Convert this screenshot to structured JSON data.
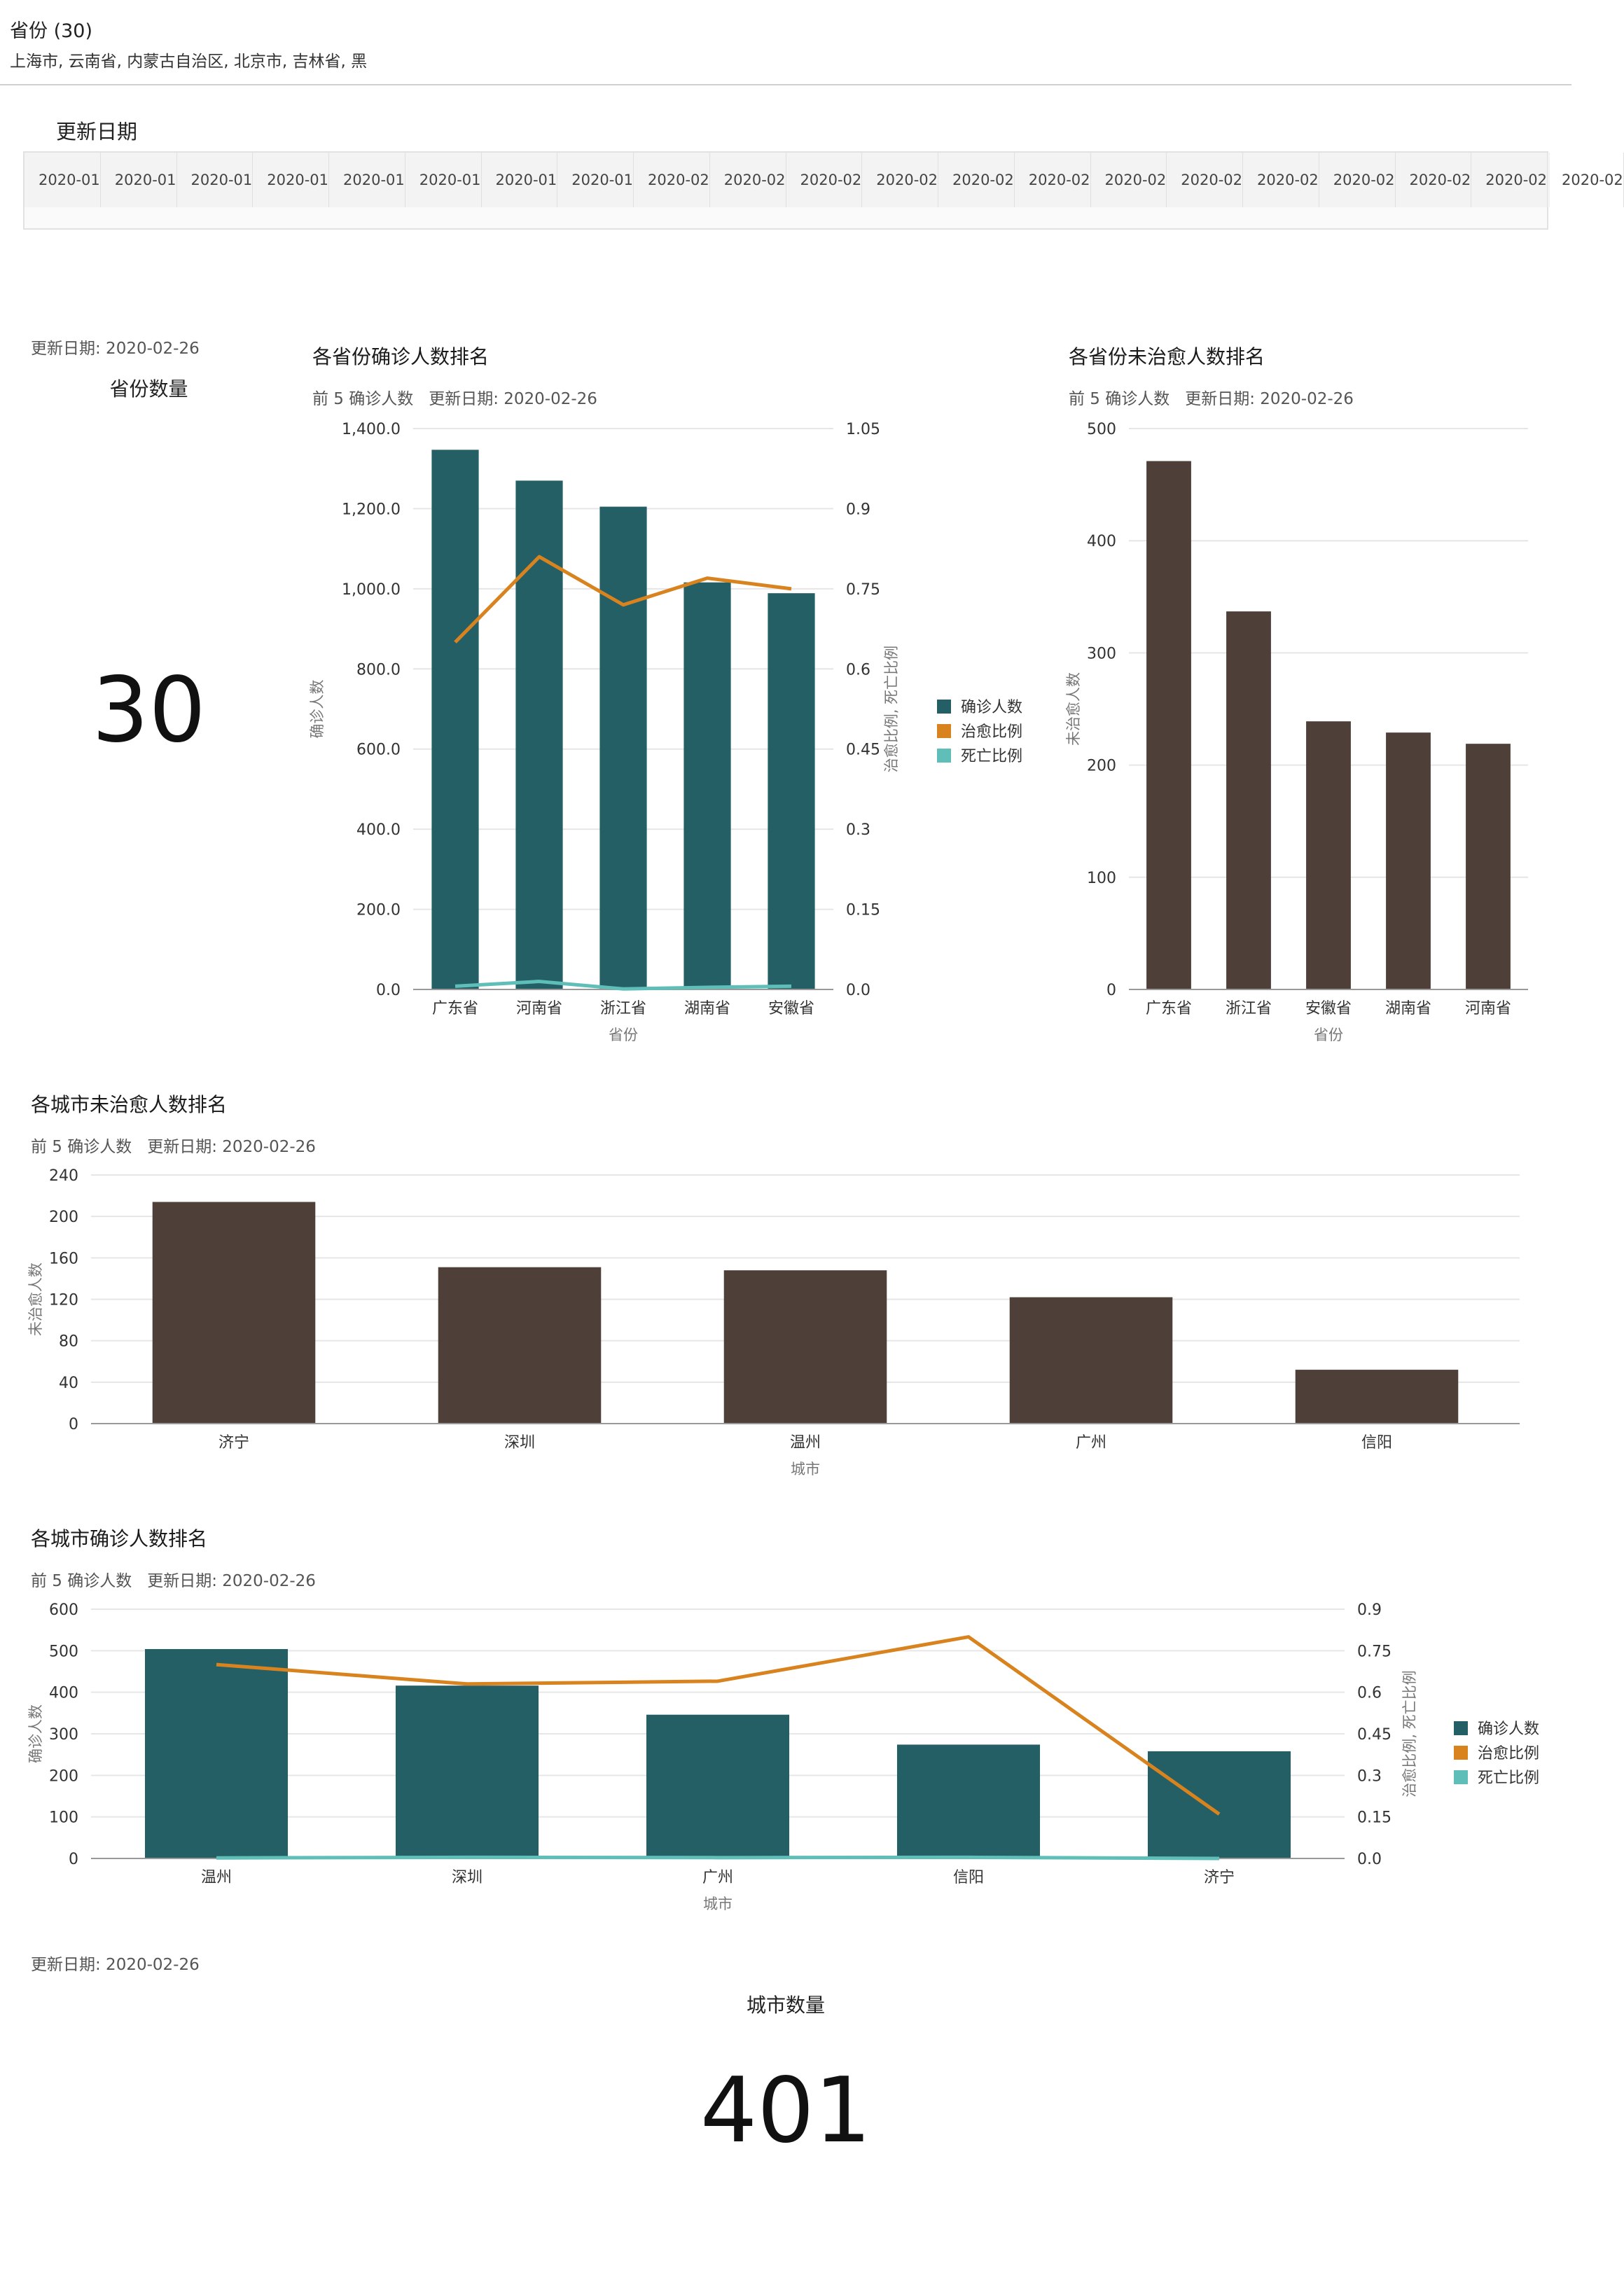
{
  "filter": {
    "title": "省份 (30)",
    "values": "上海市, 云南省, 内蒙古自治区, 北京市, 吉林省, 黑"
  },
  "date_filter": {
    "label": "更新日期",
    "dates": [
      "2020-01",
      "2020-01",
      "2020-01",
      "2020-01",
      "2020-01",
      "2020-01",
      "2020-01",
      "2020-01",
      "2020-02",
      "2020-02",
      "2020-02",
      "2020-02",
      "2020-02",
      "2020-02",
      "2020-02",
      "2020-02",
      "2020-02",
      "2020-02",
      "2020-02",
      "2020-02",
      "2020-02"
    ]
  },
  "kpi_province": {
    "update": "更新日期: 2020-02-26",
    "title": "省份数量",
    "value": "30"
  },
  "kpi_city": {
    "update": "更新日期: 2020-02-26",
    "title": "城市数量",
    "value": "401"
  },
  "colors": {
    "teal": "#245f66",
    "orange": "#d9831f",
    "cyan": "#5fbfb8",
    "brown": "#4e4038",
    "grid": "#e6e6e6",
    "axis": "#999999"
  },
  "chart_data": [
    {
      "id": "prov_confirmed",
      "type": "bar",
      "title": "各省份确诊人数排名",
      "subtitle_top": "前 5 确诊人数",
      "subtitle_date": "更新日期: 2020-02-26",
      "categories": [
        "广东省",
        "河南省",
        "浙江省",
        "湖南省",
        "安徽省"
      ],
      "series": [
        {
          "name": "确诊人数",
          "type": "bar",
          "axis": "left",
          "values": [
            1347,
            1270,
            1205,
            1016,
            989
          ]
        },
        {
          "name": "治愈比例",
          "type": "line",
          "axis": "right",
          "values": [
            0.65,
            0.81,
            0.72,
            0.77,
            0.75
          ]
        },
        {
          "name": "死亡比例",
          "type": "line",
          "axis": "right",
          "values": [
            0.006,
            0.015,
            0.001,
            0.004,
            0.006
          ]
        }
      ],
      "xlabel": "省份",
      "ylabel": "确诊人数",
      "y2label": "治愈比例, 死亡比例",
      "ylim": [
        0,
        1400
      ],
      "y2lim": [
        0,
        1.05
      ],
      "yticks": [
        "0.0",
        "200.0",
        "400.0",
        "600.0",
        "800.0",
        "1,000.0",
        "1,200.0",
        "1,400.0"
      ],
      "y2ticks": [
        "0.0",
        "0.15",
        "0.3",
        "0.45",
        "0.6",
        "0.75",
        "0.9",
        "1.05"
      ],
      "legend": "right"
    },
    {
      "id": "prov_uncured",
      "type": "bar",
      "title": "各省份未治愈人数排名",
      "subtitle_top": "前 5 确诊人数",
      "subtitle_date": "更新日期: 2020-02-26",
      "categories": [
        "广东省",
        "浙江省",
        "安徽省",
        "湖南省",
        "河南省"
      ],
      "series": [
        {
          "name": "未治愈人数",
          "type": "bar",
          "values": [
            471,
            337,
            239,
            229,
            219
          ]
        }
      ],
      "xlabel": "省份",
      "ylabel": "未治愈人数",
      "ylim": [
        0,
        500
      ],
      "yticks": [
        "0",
        "100",
        "200",
        "300",
        "400",
        "500"
      ]
    },
    {
      "id": "city_uncured",
      "type": "bar",
      "title": "各城市未治愈人数排名",
      "subtitle_top": "前 5 确诊人数",
      "subtitle_date": "更新日期: 2020-02-26",
      "categories": [
        "济宁",
        "深圳",
        "温州",
        "广州",
        "信阳"
      ],
      "series": [
        {
          "name": "未治愈人数",
          "type": "bar",
          "values": [
            214,
            151,
            148,
            122,
            52
          ]
        }
      ],
      "xlabel": "城市",
      "ylabel": "未治愈人数",
      "ylim": [
        0,
        240
      ],
      "yticks": [
        "0",
        "40",
        "80",
        "120",
        "160",
        "200",
        "240"
      ]
    },
    {
      "id": "city_confirmed",
      "type": "bar",
      "title": "各城市确诊人数排名",
      "subtitle_top": "前 5 确诊人数",
      "subtitle_date": "更新日期: 2020-02-26",
      "categories": [
        "温州",
        "深圳",
        "广州",
        "信阳",
        "济宁"
      ],
      "series": [
        {
          "name": "确诊人数",
          "type": "bar",
          "axis": "left",
          "values": [
            504,
            416,
            346,
            274,
            258
          ]
        },
        {
          "name": "治愈比例",
          "type": "line",
          "axis": "right",
          "values": [
            0.7,
            0.63,
            0.64,
            0.8,
            0.16
          ]
        },
        {
          "name": "死亡比例",
          "type": "line",
          "axis": "right",
          "values": [
            0.002,
            0.004,
            0.003,
            0.004,
            0.0
          ]
        }
      ],
      "xlabel": "城市",
      "ylabel": "确诊人数",
      "y2label": "治愈比例, 死亡比例",
      "ylim": [
        0,
        600
      ],
      "y2lim": [
        0,
        0.9
      ],
      "yticks": [
        "0",
        "100",
        "200",
        "300",
        "400",
        "500",
        "600"
      ],
      "y2ticks": [
        "0.0",
        "0.15",
        "0.3",
        "0.45",
        "0.6",
        "0.75",
        "0.9"
      ],
      "legend": "right"
    }
  ]
}
